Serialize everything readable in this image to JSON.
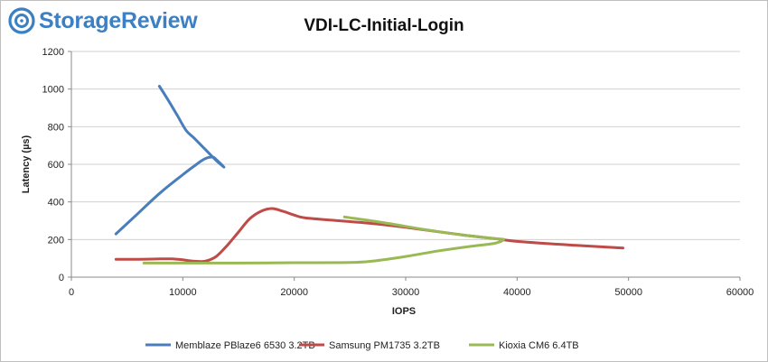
{
  "brand": {
    "name": "StorageReview",
    "logo_icon": "storagereview-logo-icon",
    "color": "#3b7fc4"
  },
  "chart_data": {
    "type": "line",
    "title": "VDI-LC-Initial-Login",
    "xlabel": "IOPS",
    "ylabel": "Latency (µs)",
    "xlim": [
      0,
      60000
    ],
    "ylim": [
      0,
      1200
    ],
    "xticks": [
      0,
      10000,
      20000,
      30000,
      40000,
      50000,
      60000
    ],
    "yticks": [
      0,
      200,
      400,
      600,
      800,
      1000,
      1200
    ],
    "grid": "horizontal",
    "legend": "bottom",
    "series": [
      {
        "name": "Memblaze PBlaze6 6530 3.2TB",
        "color": "#4a7ebb",
        "points": [
          [
            4000,
            230
          ],
          [
            6000,
            340
          ],
          [
            8000,
            450
          ],
          [
            10000,
            545
          ],
          [
            11000,
            590
          ],
          [
            12000,
            630
          ],
          [
            12700,
            638
          ],
          [
            13000,
            625
          ],
          [
            13700,
            585
          ],
          [
            13000,
            620
          ],
          [
            12000,
            680
          ],
          [
            11000,
            740
          ],
          [
            10300,
            780
          ],
          [
            9500,
            860
          ],
          [
            8700,
            940
          ],
          [
            7900,
            1015
          ]
        ]
      },
      {
        "name": "Samsung PM1735 3.2TB",
        "color": "#be4b48",
        "points": [
          [
            4000,
            95
          ],
          [
            6000,
            95
          ],
          [
            8000,
            97
          ],
          [
            9000,
            97
          ],
          [
            10000,
            92
          ],
          [
            11000,
            85
          ],
          [
            12000,
            85
          ],
          [
            13000,
            110
          ],
          [
            14000,
            170
          ],
          [
            15000,
            240
          ],
          [
            16000,
            310
          ],
          [
            17000,
            350
          ],
          [
            18000,
            365
          ],
          [
            19000,
            350
          ],
          [
            20000,
            330
          ],
          [
            21000,
            315
          ],
          [
            24000,
            300
          ],
          [
            27000,
            285
          ],
          [
            30000,
            265
          ],
          [
            35000,
            225
          ],
          [
            38000,
            205
          ],
          [
            40000,
            190
          ],
          [
            45000,
            170
          ],
          [
            49500,
            155
          ]
        ]
      },
      {
        "name": "Kioxia CM6 6.4TB",
        "color": "#98b954",
        "points": [
          [
            6500,
            75
          ],
          [
            10000,
            75
          ],
          [
            15000,
            75
          ],
          [
            20000,
            77
          ],
          [
            25000,
            78
          ],
          [
            27000,
            85
          ],
          [
            30000,
            110
          ],
          [
            33000,
            140
          ],
          [
            36000,
            165
          ],
          [
            38000,
            180
          ],
          [
            38800,
            200
          ],
          [
            38000,
            205
          ],
          [
            35000,
            225
          ],
          [
            32000,
            250
          ],
          [
            28000,
            290
          ],
          [
            24500,
            320
          ]
        ]
      }
    ]
  }
}
